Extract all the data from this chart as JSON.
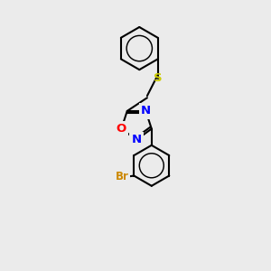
{
  "background_color": "#ebebeb",
  "bond_color": "#000000",
  "S_color": "#cccc00",
  "O_color": "#ff0000",
  "N_color": "#0000ff",
  "Br_color": "#cc8800",
  "bond_width": 1.5,
  "font_size_atom": 9.5,
  "font_size_br": 8.5,
  "xlim": [
    0,
    10
  ],
  "ylim": [
    0,
    14
  ]
}
